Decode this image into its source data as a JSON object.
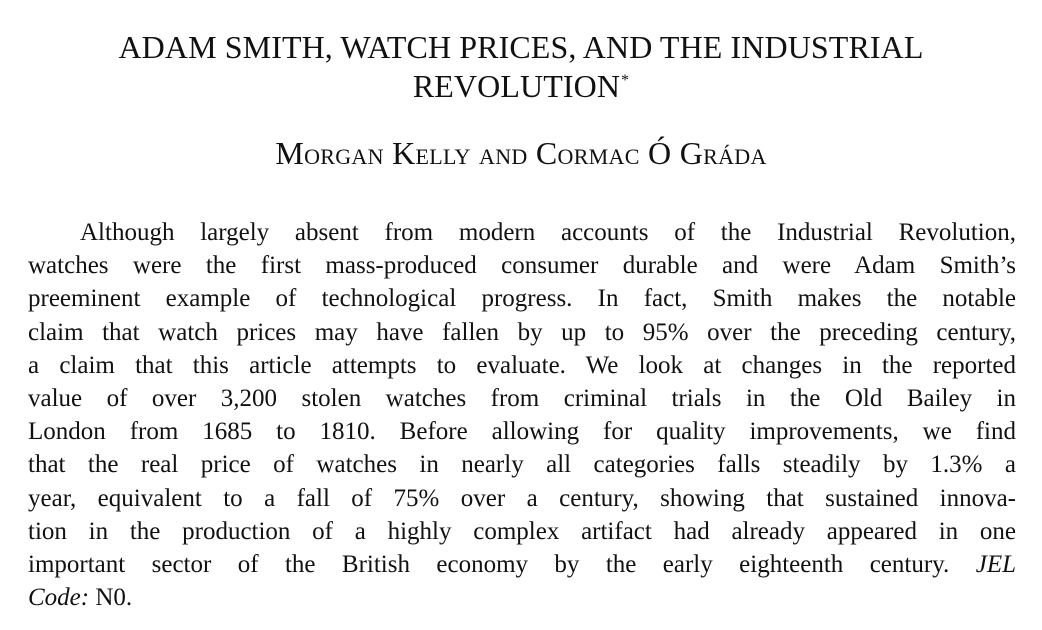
{
  "title": {
    "line1": "ADAM SMITH, WATCH PRICES, AND THE INDUSTRIAL",
    "line2": "REVOLUTION",
    "footnote_mark": "*"
  },
  "authors": "Morgan Kelly and Cormac Ó Gráda",
  "abstract": {
    "lines": [
      "Although largely absent from modern accounts of the Industrial Revolution,",
      "watches were the first mass-produced consumer durable and were Adam Smith’s",
      "preeminent example of technological progress. In fact, Smith makes the notable",
      "claim that watch prices may have fallen by up to 95% over the preceding century,",
      "a claim that this article attempts to evaluate. We look at changes in the reported",
      "value of over 3,200 stolen watches from criminal trials in the Old Bailey in",
      "London from 1685 to 1810. Before allowing for quality improvements, we find",
      "that the real price of watches in nearly all categories falls steadily by 1.3% a",
      "year, equivalent to a fall of 75% over a century, showing that sustained innova-",
      "tion in the production of a highly complex artifact had already appeared in one",
      "important sector of the British economy by the early eighteenth century."
    ],
    "jel_label_part1": "JEL",
    "jel_label_part2": "Code:",
    "jel_code": "N0."
  }
}
